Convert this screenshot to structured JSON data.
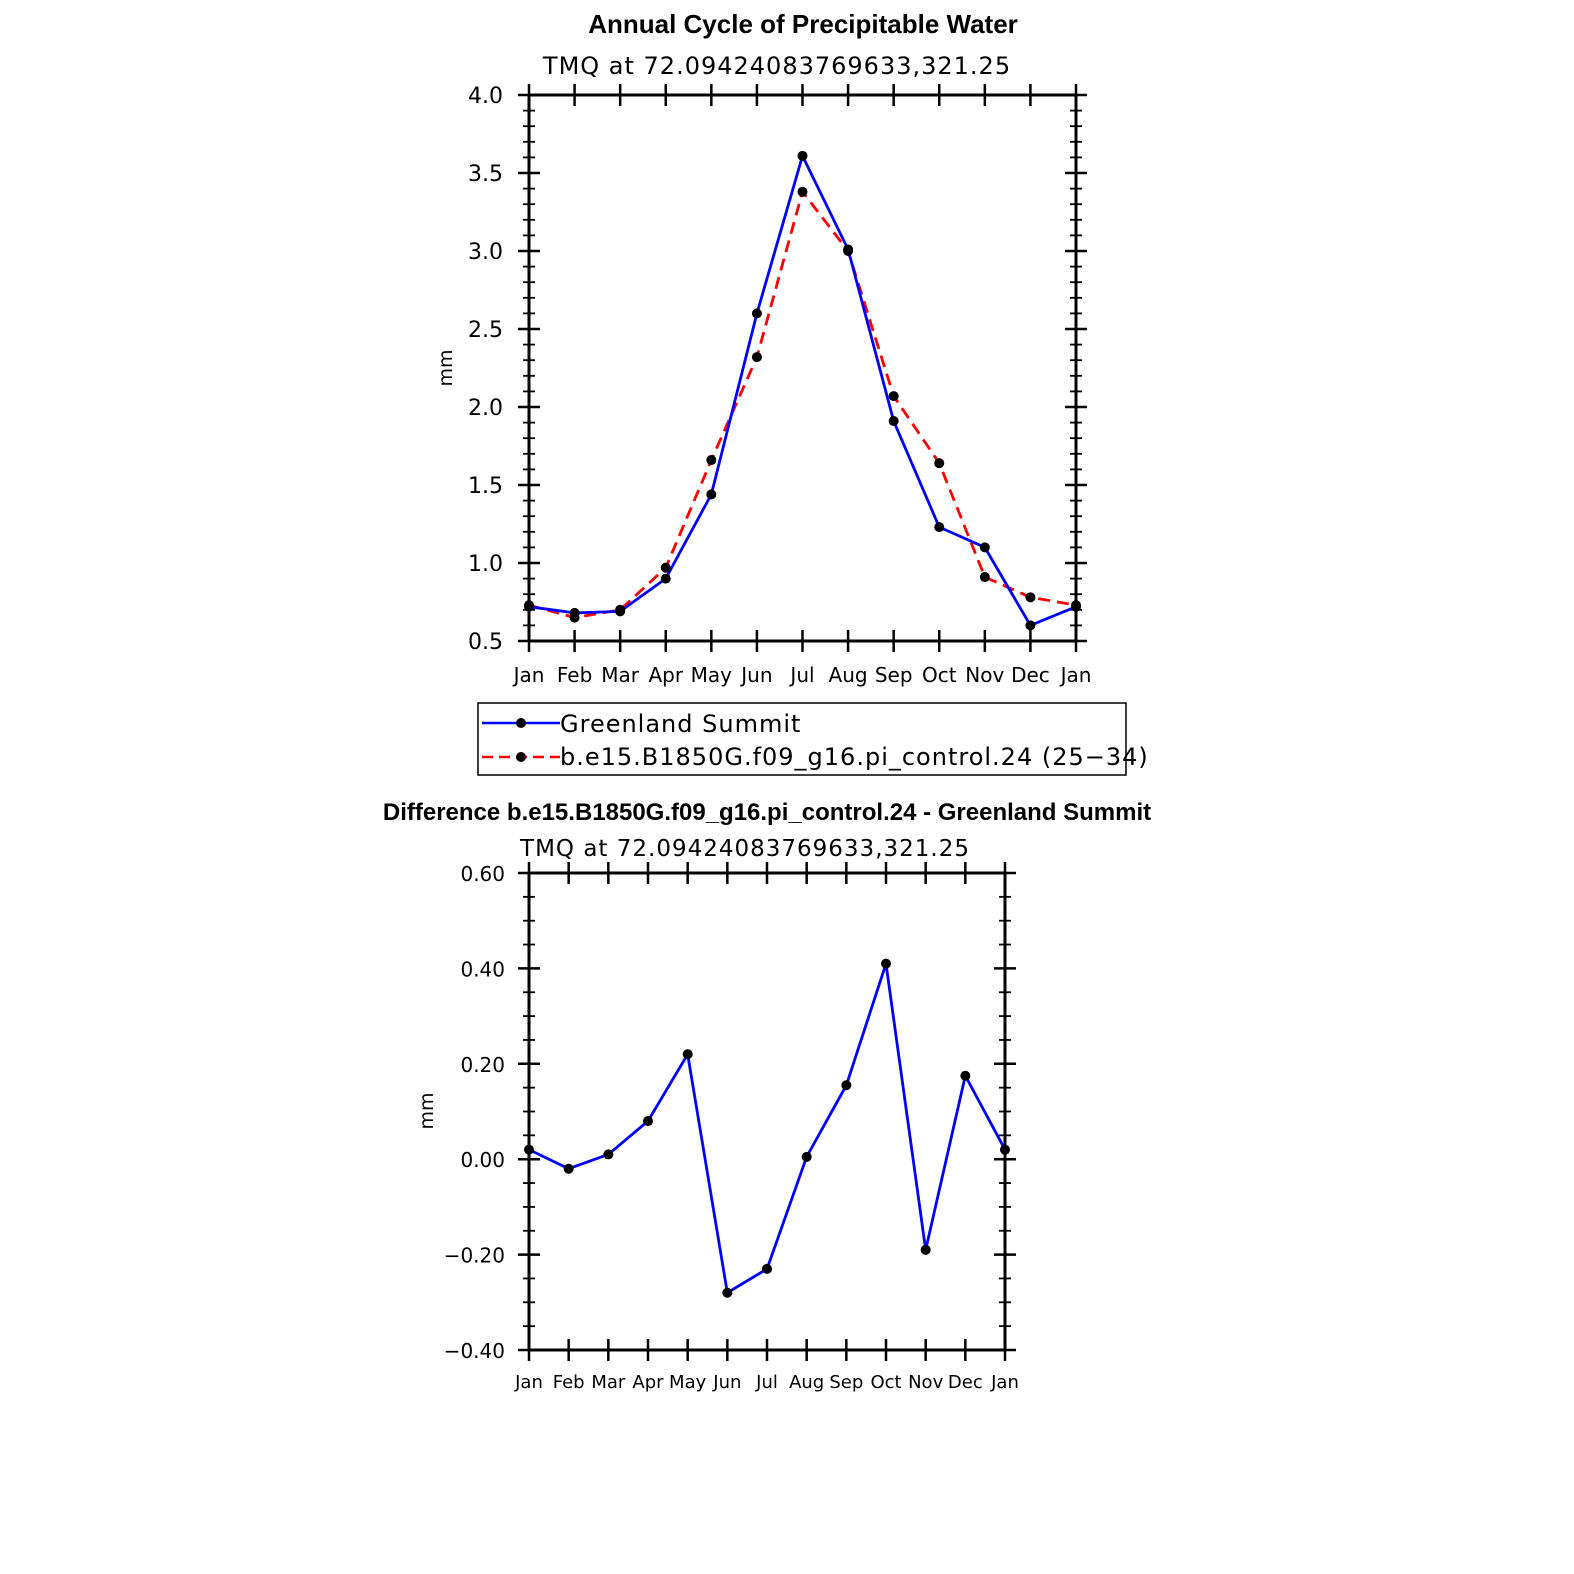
{
  "chart_data": [
    {
      "type": "line",
      "title": "Annual Cycle of Precipitable Water",
      "subtitle": "TMQ at 72.09424083769633,321.25",
      "xlabel": "",
      "ylabel": "mm",
      "categories": [
        "Jan",
        "Feb",
        "Mar",
        "Apr",
        "May",
        "Jun",
        "Jul",
        "Aug",
        "Sep",
        "Oct",
        "Nov",
        "Dec",
        "Jan"
      ],
      "ylim": [
        0.5,
        4.0
      ],
      "yticks": [
        "0.5",
        "1.0",
        "1.5",
        "2.0",
        "2.5",
        "3.0",
        "3.5",
        "4.0"
      ],
      "grid": false,
      "legend_position": "bottom",
      "series": [
        {
          "name": "Greenland Summit",
          "color": "#0000ff",
          "dash": "solid",
          "values": [
            0.72,
            0.68,
            0.69,
            0.9,
            1.44,
            2.6,
            3.61,
            3.01,
            1.91,
            1.23,
            1.1,
            0.6,
            0.72
          ]
        },
        {
          "name": "b.e15.B1850G.f09_g16.pi_control.24 (25−34)",
          "color": "#ff0000",
          "dash": "dashed",
          "values": [
            0.73,
            0.65,
            0.7,
            0.97,
            1.66,
            2.32,
            3.38,
            3.0,
            2.07,
            1.64,
            0.91,
            0.78,
            0.73
          ]
        }
      ]
    },
    {
      "type": "line",
      "title": "Difference b.e15.B1850G.f09_g16.pi_control.24 - Greenland Summit",
      "subtitle": "TMQ at 72.09424083769633,321.25",
      "xlabel": "",
      "ylabel": "mm",
      "categories": [
        "Jan",
        "Feb",
        "Mar",
        "Apr",
        "May",
        "Jun",
        "Jul",
        "Aug",
        "Sep",
        "Oct",
        "Nov",
        "Dec",
        "Jan"
      ],
      "ylim": [
        -0.4,
        0.6
      ],
      "yticks": [
        "−0.40",
        "−0.20",
        "0.00",
        "0.20",
        "0.40",
        "0.60"
      ],
      "grid": false,
      "series": [
        {
          "color": "#0000ff",
          "dash": "solid",
          "values": [
            0.02,
            -0.02,
            0.01,
            0.08,
            0.22,
            -0.28,
            -0.23,
            0.005,
            0.155,
            0.41,
            -0.19,
            0.175,
            0.02
          ]
        }
      ]
    }
  ]
}
